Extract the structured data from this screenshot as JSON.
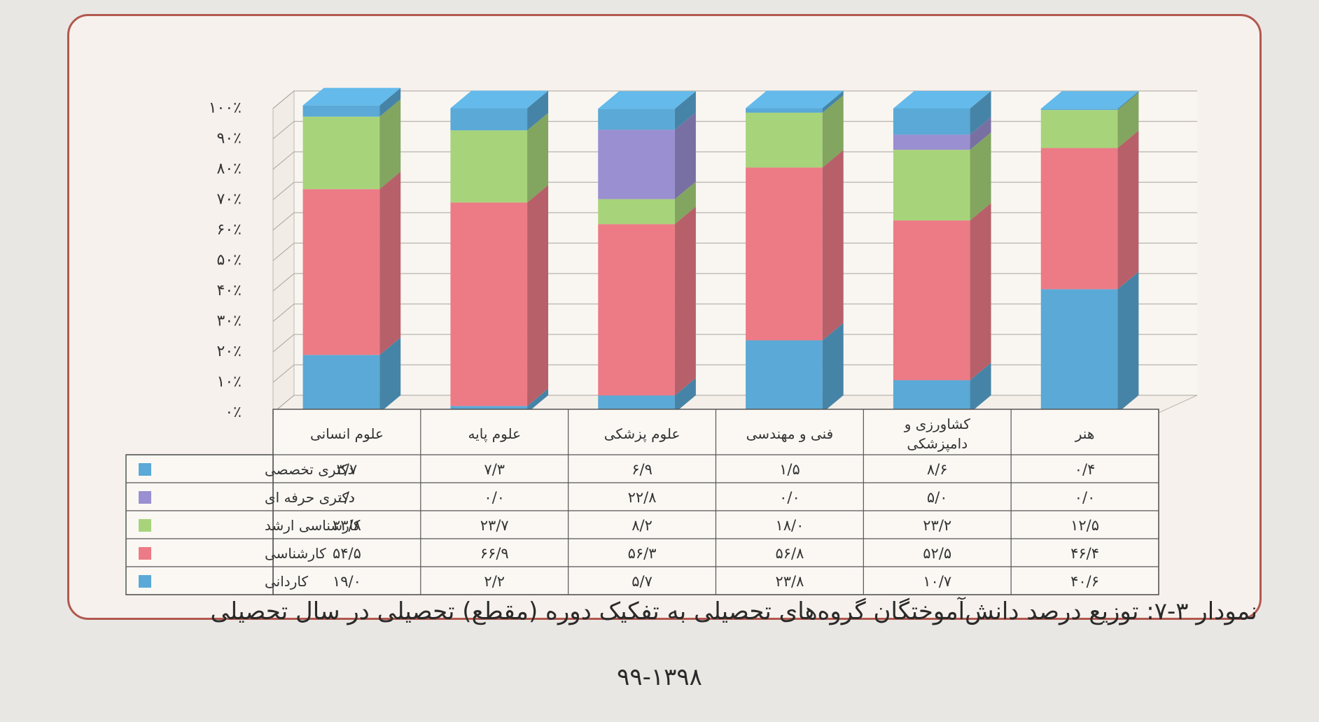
{
  "chart_data": {
    "type": "bar",
    "stacked": true,
    "three_d": true,
    "y_axis_ticks": [
      "۰٪",
      "۱۰٪",
      "۲۰٪",
      "۳۰٪",
      "۴۰٪",
      "۵۰٪",
      "۶۰٪",
      "۷۰٪",
      "۸۰٪",
      "۹۰٪",
      "۱۰۰٪"
    ],
    "ylim": [
      0,
      100
    ],
    "categories": [
      "علوم انسانی",
      "علوم پایه",
      "علوم پزشکی",
      "فنی و مهندسی",
      "کشاورزی و دامپزشکی",
      "هنر"
    ],
    "category_lines": [
      [
        "علوم انسانی"
      ],
      [
        "علوم پایه"
      ],
      [
        "علوم پزشکی"
      ],
      [
        "فنی و مهندسی"
      ],
      [
        "کشاورزی و",
        "دامپزشکی"
      ],
      [
        "هنر"
      ]
    ],
    "series": [
      {
        "name": "دکتری تخصصی",
        "color": "#5aa9d6",
        "values": [
          3.7,
          7.3,
          6.9,
          1.5,
          8.6,
          0.4
        ],
        "labels": [
          "۳/۷",
          "۷/۳",
          "۶/۹",
          "۱/۵",
          "۸/۶",
          "۰/۴"
        ]
      },
      {
        "name": "دکتری حرفه ای",
        "color": "#9a8fd0",
        "values": [
          0.0,
          0.0,
          22.8,
          0.0,
          5.0,
          0.0
        ],
        "labels": [
          "۰/۰",
          "۰/۰",
          "۲۲/۸",
          "۰/۰",
          "۵/۰",
          "۰/۰"
        ]
      },
      {
        "name": "کارشناسی ارشد",
        "color": "#a7d47a",
        "values": [
          23.8,
          23.7,
          8.2,
          18.0,
          23.2,
          12.5
        ],
        "labels": [
          "۲۳/۸",
          "۲۳/۷",
          "۸/۲",
          "۱۸/۰",
          "۲۳/۲",
          "۱۲/۵"
        ]
      },
      {
        "name": "کارشناسی",
        "color": "#ec7b86",
        "values": [
          54.5,
          66.9,
          56.3,
          56.8,
          52.5,
          46.4
        ],
        "labels": [
          "۵۴/۵",
          "۶۶/۹",
          "۵۶/۳",
          "۵۶/۸",
          "۵۲/۵",
          "۴۶/۴"
        ]
      },
      {
        "name": "کاردانی",
        "color": "#5aa9d6",
        "values": [
          19.0,
          2.2,
          5.7,
          23.8,
          10.7,
          40.6
        ],
        "labels": [
          "۱۹/۰",
          "۲/۲",
          "۵/۷",
          "۲۳/۸",
          "۱۰/۷",
          "۴۰/۶"
        ]
      }
    ],
    "legend_position": "left-of-table"
  },
  "caption": "نمودار ۳-۷: توزیع درصد دانش‌آموختگان گروه‌های تحصیلی به تفکیک دوره (مقطع) تحصیلی در سال تحصیلی",
  "caption_year": "۹۹-۱۳۹۸"
}
